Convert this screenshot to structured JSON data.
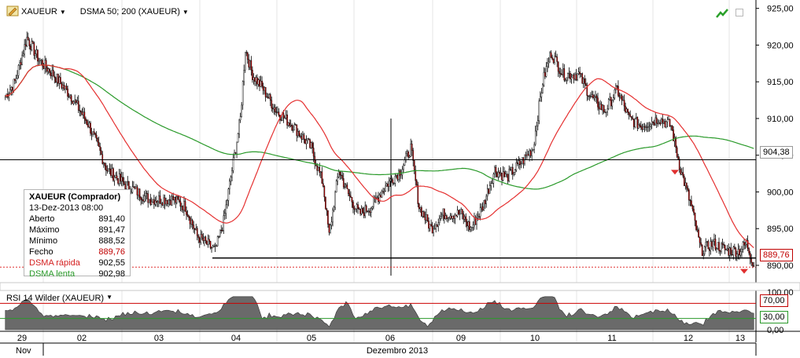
{
  "toolbar": {
    "symbol": "XAUEUR",
    "indicator": "DSMA 50; 200 (XAUEUR)",
    "icons": [
      "pencil-icon",
      "trend-icon",
      "restore-icon"
    ]
  },
  "colors": {
    "candle_up": "#ffffff",
    "candle_down": "#c00000",
    "dsma_fast": "#e53030",
    "dsma_slow": "#2a9a2a",
    "rsi_fill": "#6a6a6a",
    "level_red": "#cc0000",
    "level_green": "#2a9a2a"
  },
  "infobox": {
    "title": "XAUEUR (Comprador)",
    "datetime": "13-Dez-2013 08:00",
    "rows": [
      {
        "label": "Aberto",
        "value": "891,40"
      },
      {
        "label": "Máximo",
        "value": "891,47"
      },
      {
        "label": "Mínimo",
        "value": "888,52"
      },
      {
        "label": "Fecho",
        "value": "889,76"
      },
      {
        "label": "DSMA rápida",
        "value": "902,55"
      },
      {
        "label": "DSMA lenta",
        "value": "902,98"
      }
    ]
  },
  "price_axis": {
    "ticks": [
      "925,00",
      "920,00",
      "915,00",
      "910,00",
      "905,00",
      "900,00",
      "895,00",
      "890,00"
    ],
    "horizontal_line_label": "904,38",
    "last_price_label": "889,76"
  },
  "rsi": {
    "label": "RSI 14 Wilder (XAUEUR)",
    "ticks": [
      "100,00",
      "70,00",
      "30,00",
      "0,00"
    ],
    "upper_label": "70,00",
    "lower_label": "30,00"
  },
  "time_axis": {
    "days": [
      "29",
      "02",
      "03",
      "04",
      "05",
      "06",
      "09",
      "10",
      "11",
      "12",
      "13"
    ],
    "month_labels": [
      "Nov",
      "Dezembro 2013"
    ]
  },
  "chart_data": {
    "type": "candlestick",
    "price_range": [
      888.5,
      925.5
    ],
    "horizontal_levels": [
      904.38,
      891.0
    ],
    "series": [
      {
        "name": "XAUEUR",
        "close_sample": [
          914.0,
          921.0,
          916.0,
          905.0,
          901.0,
          899.0,
          893.0,
          918.5,
          910.0,
          906.0,
          898.0,
          896.0,
          899.0,
          897.5,
          894.5,
          905.0,
          903.0,
          902.0,
          903.5,
          917.0,
          913.0,
          911.0,
          909.5,
          893.0,
          891.5,
          889.76
        ]
      },
      {
        "name": "DSMA rápida"
      },
      {
        "name": "DSMA lenta"
      }
    ],
    "rsi_levels": [
      70,
      30
    ]
  }
}
